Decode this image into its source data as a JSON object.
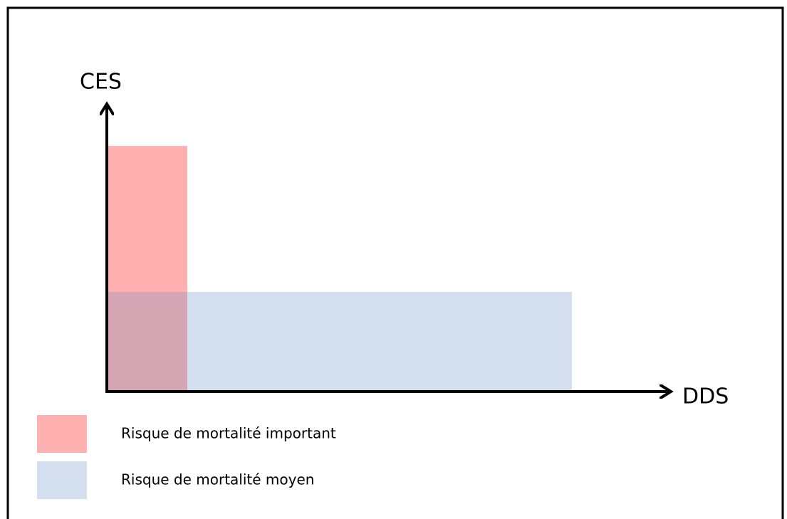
{
  "y_axis_label": "CES",
  "x_axis_label": "DDS",
  "legend": [
    {
      "label": "Risque de mortalité important"
    },
    {
      "label": "Risque de mortalité moyen"
    }
  ]
}
